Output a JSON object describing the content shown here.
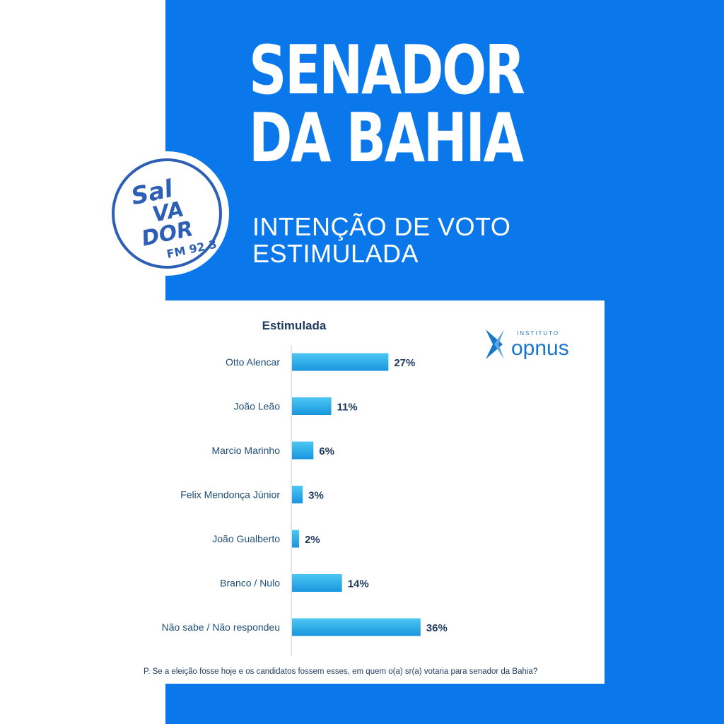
{
  "header": {
    "title_line1": "SENADOR",
    "title_line2": "DA BAHIA",
    "subtitle_line1": "INTENÇÃO DE VOTO",
    "subtitle_line2": "ESTIMULADA"
  },
  "brand_logo": {
    "line1": "Sal",
    "line2": "VA",
    "line3": "DOR",
    "line4": "FM 92.3"
  },
  "source_logo": {
    "small": "INSTITUTO",
    "name": "opnus"
  },
  "colors": {
    "panel": "#0a78eb",
    "bar_light": "#3fc2f2",
    "bar_dark": "#1692dd",
    "label_text": "#1f4e79",
    "title_text": "#1f3a5f"
  },
  "chart_data": {
    "type": "bar",
    "orientation": "horizontal",
    "title": "Estimulada",
    "categories": [
      "Otto Alencar",
      "João Leão",
      "Marcio Marinho",
      "Felix Mendonça Júnior",
      "João Gualberto",
      "Branco / Nulo",
      "Não sabe / Não respondeu"
    ],
    "values": [
      27,
      11,
      6,
      3,
      2,
      14,
      36
    ],
    "value_labels": [
      "27%",
      "11%",
      "6%",
      "3%",
      "2%",
      "14%",
      "36%"
    ],
    "unit": "%",
    "grid": false,
    "footnote": "P. Se a eleição fosse hoje e os candidatos fossem esses, em quem o(a) sr(a) votaria para senador da Bahia?"
  }
}
